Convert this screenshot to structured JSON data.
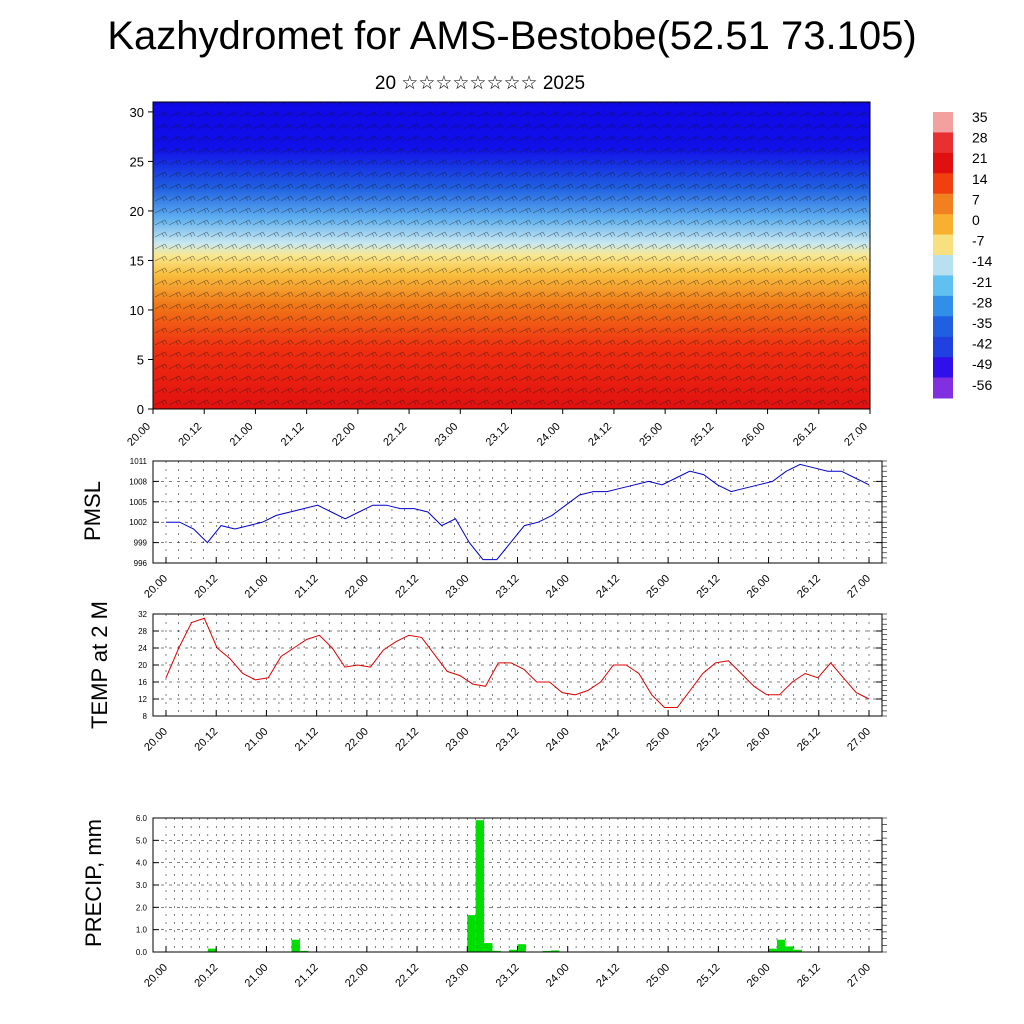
{
  "header": {
    "title": "Kazhydromet for AMS-Bestobe(52.51 73.105)",
    "subtitle": "20 ☆☆☆☆☆☆☆☆ 2025"
  },
  "chart_data": [
    {
      "type": "heatmap",
      "title": "",
      "x_ticks": [
        "20.00",
        "20.12",
        "21.00",
        "21.12",
        "22.00",
        "22.12",
        "23.00",
        "23.12",
        "24.00",
        "24.12",
        "25.00",
        "25.12",
        "26.00",
        "26.12",
        "27.00"
      ],
      "y_ticks": [
        0,
        5,
        10,
        15,
        20,
        25,
        30
      ],
      "ylim": [
        0,
        31
      ],
      "colorbar": {
        "labels": [
          "35",
          "28",
          "21",
          "14",
          "7",
          "0",
          "-7",
          "-14",
          "-21",
          "-28",
          "-35",
          "-42",
          "-49",
          "-56"
        ],
        "colors": [
          "#f2a0a0",
          "#e83030",
          "#e01010",
          "#f04010",
          "#f08020",
          "#f8b030",
          "#f8e080",
          "#b8e0f0",
          "#60c0f0",
          "#3090e8",
          "#2060e0",
          "#2040e0",
          "#3010e8",
          "#8030e0"
        ]
      },
      "profile_by_level": [
        {
          "level": 0,
          "value": 28
        },
        {
          "level": 5,
          "value": 21
        },
        {
          "level": 10,
          "value": 7
        },
        {
          "level": 15,
          "value": -7
        },
        {
          "level": 20,
          "value": -28
        },
        {
          "level": 25,
          "value": -49
        },
        {
          "level": 30,
          "value": -56
        }
      ],
      "overlay": "wind barbs"
    },
    {
      "type": "line",
      "ylabel": "PMSL",
      "x_ticks": [
        "20.00",
        "20.12",
        "21.00",
        "21.12",
        "22.00",
        "22.12",
        "23.00",
        "23.12",
        "24.00",
        "24.12",
        "25.00",
        "25.12",
        "26.00",
        "26.12",
        "27.00"
      ],
      "y_ticks": [
        996,
        999,
        1002,
        1005,
        1008,
        1011
      ],
      "ylim": [
        996,
        1011
      ],
      "color": "#0000cc",
      "values": [
        1002,
        1002,
        1001,
        999,
        1001.5,
        1001,
        1001.5,
        1002,
        1003,
        1003.5,
        1004,
        1004.5,
        1003.5,
        1002.5,
        1003.5,
        1004.5,
        1004.5,
        1004,
        1004,
        1003.5,
        1001.5,
        1002.5,
        999,
        996.5,
        996.5,
        999,
        1001.5,
        1002,
        1003,
        1004.5,
        1006,
        1006.5,
        1006.5,
        1007,
        1007.5,
        1008,
        1007.5,
        1008.5,
        1009.5,
        1009,
        1007.5,
        1006.5,
        1007,
        1007.5,
        1008,
        1009.5,
        1010.5,
        1010,
        1009.5,
        1009.5,
        1008.5,
        1007.5
      ]
    },
    {
      "type": "line",
      "ylabel": "TEMP at 2 M",
      "x_ticks": [
        "20.00",
        "20.12",
        "21.00",
        "21.12",
        "22.00",
        "22.12",
        "23.00",
        "23.12",
        "24.00",
        "24.12",
        "25.00",
        "25.12",
        "26.00",
        "26.12",
        "27.00"
      ],
      "y_ticks": [
        8,
        12,
        16,
        20,
        24,
        28,
        32
      ],
      "ylim": [
        8,
        32
      ],
      "color": "#dd0000",
      "values": [
        17,
        24,
        30,
        31,
        24,
        21.5,
        18,
        16.5,
        17,
        22,
        24,
        26,
        27,
        24,
        19.5,
        20,
        19.5,
        23.5,
        25.5,
        27,
        26.5,
        22.5,
        18.5,
        17.5,
        15.5,
        15,
        20.5,
        20.5,
        19,
        16,
        16,
        13.5,
        13,
        14,
        16,
        20,
        20,
        18,
        13,
        10,
        10,
        14,
        18,
        20.5,
        21,
        18,
        15,
        13,
        13,
        16,
        18,
        17,
        20.5,
        17,
        13.5,
        12
      ]
    },
    {
      "type": "bar",
      "ylabel": "PRECIP, mm",
      "x_ticks": [
        "20.00",
        "20.12",
        "21.00",
        "21.12",
        "22.00",
        "22.12",
        "23.00",
        "23.12",
        "24.00",
        "24.12",
        "25.00",
        "25.12",
        "26.00",
        "26.12",
        "27.00"
      ],
      "y_ticks": [
        "0.0",
        "1.0",
        "2.0",
        "3.0",
        "4.0",
        "5.0",
        "6.0"
      ],
      "ylim": [
        0,
        6
      ],
      "color": "#00dd00",
      "bars": [
        {
          "t": 5,
          "value": 0.15
        },
        {
          "t": 15,
          "value": 0.55
        },
        {
          "t": 16,
          "value": 0.05
        },
        {
          "t": 36,
          "value": 1.65
        },
        {
          "t": 37,
          "value": 5.9
        },
        {
          "t": 38,
          "value": 0.4
        },
        {
          "t": 39,
          "value": 0.05
        },
        {
          "t": 41,
          "value": 0.1
        },
        {
          "t": 42,
          "value": 0.35
        },
        {
          "t": 45,
          "value": 0.05
        },
        {
          "t": 46,
          "value": 0.07
        },
        {
          "t": 72,
          "value": 0.15
        },
        {
          "t": 73,
          "value": 0.55
        },
        {
          "t": 74,
          "value": 0.25
        },
        {
          "t": 75,
          "value": 0.1
        }
      ]
    }
  ]
}
